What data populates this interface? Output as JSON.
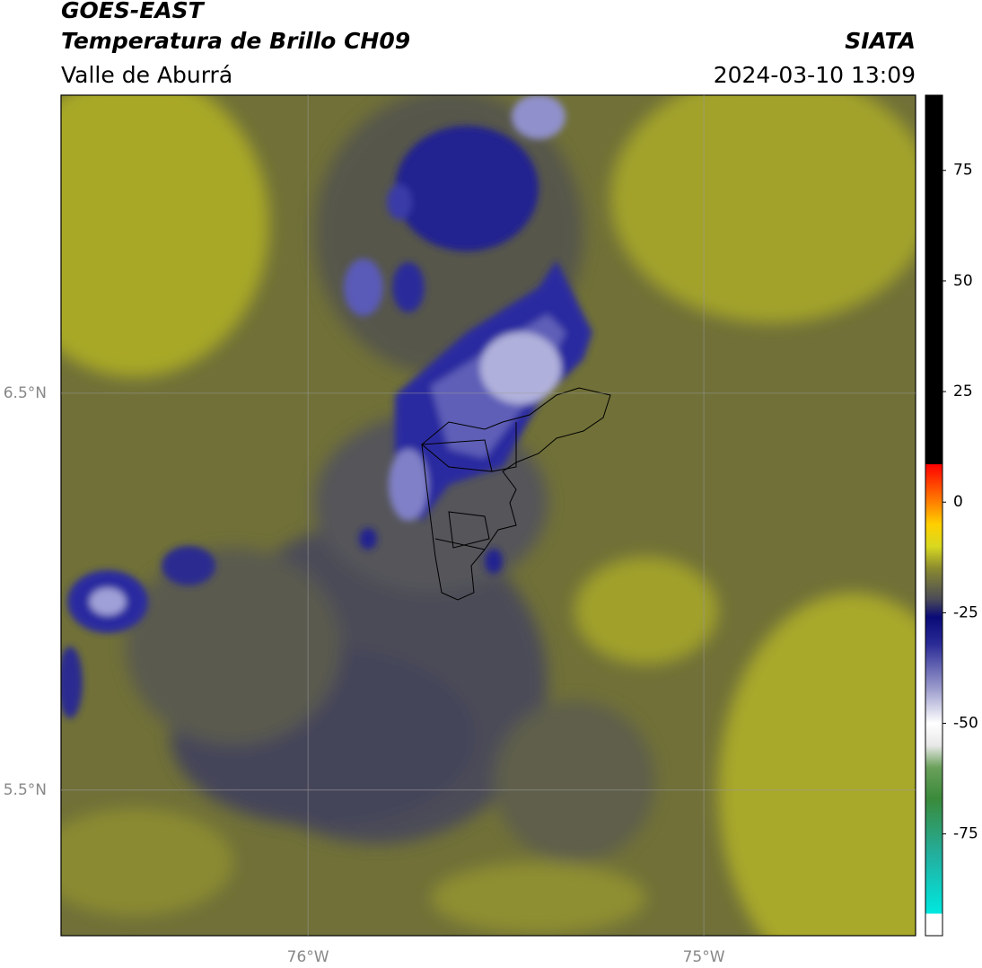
{
  "chart_data": {
    "type": "map",
    "title": "GOES-EAST",
    "subtitle": "Temperatura de Brillo CH09",
    "region": "Valle de Aburrá",
    "source": "SIATA",
    "datetime": "2024-03-10 13:09",
    "xlim": [
      -76.624,
      -74.465
    ],
    "ylim": [
      5.133,
      7.251
    ],
    "xticks": [
      {
        "value": -76,
        "label": "76°W"
      },
      {
        "value": -75,
        "label": "75°W"
      }
    ],
    "yticks": [
      {
        "value": 6.5,
        "label": "6.5°N"
      },
      {
        "value": 5.5,
        "label": "5.5°N"
      }
    ],
    "grid": true,
    "colorbar": {
      "lim": [
        -98,
        92
      ],
      "ticks": [
        75,
        50,
        25,
        0,
        -25,
        -50,
        -75
      ],
      "stops": [
        {
          "value": -98,
          "color": "#ffffff"
        },
        {
          "value": -93,
          "color": "#ffffff"
        },
        {
          "value": -93,
          "color": "#00e8e0"
        },
        {
          "value": -80,
          "color": "#22b0a0"
        },
        {
          "value": -67,
          "color": "#3a8a3a"
        },
        {
          "value": -60,
          "color": "#6aa05a"
        },
        {
          "value": -55,
          "color": "#e8e8e8"
        },
        {
          "value": -50,
          "color": "#ffffff"
        },
        {
          "value": -42,
          "color": "#9a9acc"
        },
        {
          "value": -32,
          "color": "#2a2a96"
        },
        {
          "value": -26,
          "color": "#0a0a78"
        },
        {
          "value": -22,
          "color": "#4a4a58"
        },
        {
          "value": -15,
          "color": "#8a8a30"
        },
        {
          "value": -10,
          "color": "#d8d820"
        },
        {
          "value": -5,
          "color": "#ffd000"
        },
        {
          "value": 0,
          "color": "#ff8000"
        },
        {
          "value": 8.6,
          "color": "#ff0000"
        },
        {
          "value": 8.6,
          "color": "#000000"
        },
        {
          "value": 92,
          "color": "#000000"
        }
      ]
    }
  }
}
